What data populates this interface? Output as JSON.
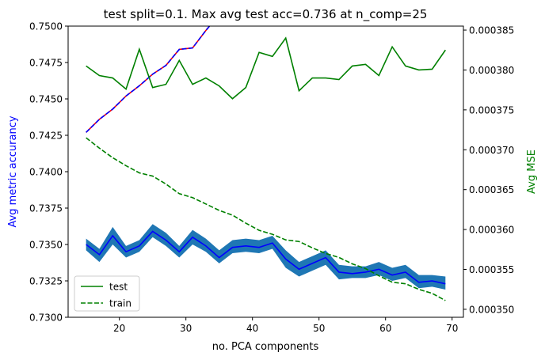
{
  "chart_data": {
    "type": "line",
    "title": "test split=0.1. Max avg test acc=0.736 at n_comp=25",
    "xlabel": "no. PCA components",
    "ylabel_left": "Avg metric accurancy",
    "ylabel_right": "Avg MSE",
    "xlim": [
      12.3,
      71.7
    ],
    "ylim_left": [
      0.73,
      0.75
    ],
    "ylim_right": [
      0.000349,
      0.0003855
    ],
    "x_ticks": [
      20,
      30,
      40,
      50,
      60,
      70
    ],
    "x_tick_labels": [
      "20",
      "30",
      "40",
      "50",
      "60",
      "70"
    ],
    "y_left_ticks": [
      0.73,
      0.7325,
      0.735,
      0.7375,
      0.74,
      0.7425,
      0.745,
      0.7475,
      0.75
    ],
    "y_left_tick_labels": [
      "0.7300",
      "0.7325",
      "0.7350",
      "0.7375",
      "0.7400",
      "0.7425",
      "0.7450",
      "0.7475",
      "0.7500"
    ],
    "y_right_ticks": [
      0.00035,
      0.000355,
      0.00036,
      0.000365,
      0.00037,
      0.000375,
      0.00038,
      0.000385
    ],
    "y_right_tick_labels": [
      "0.000350",
      "0.000355",
      "0.000360",
      "0.000365",
      "0.000370",
      "0.000375",
      "0.000380",
      "0.000385"
    ],
    "x": [
      15,
      17,
      19,
      21,
      23,
      25,
      27,
      29,
      31,
      33,
      35,
      37,
      39,
      41,
      43,
      45,
      47,
      49,
      51,
      53,
      55,
      57,
      59,
      61,
      63,
      65,
      67,
      69
    ],
    "series": [
      {
        "axis": "left",
        "values": [
          0.735,
          0.7343,
          0.7356,
          0.7345,
          0.7349,
          0.7359,
          0.7353,
          0.7345,
          0.7355,
          0.7349,
          0.7341,
          0.7348,
          0.7349,
          0.7348,
          0.7351,
          0.734,
          0.7333,
          0.7337,
          0.7341,
          0.7331,
          0.733,
          0.7331,
          0.7333,
          0.7329,
          0.7331,
          0.7324,
          0.7325,
          0.7323
        ],
        "band_lower": [
          0.7346,
          0.7338,
          0.735,
          0.7341,
          0.7345,
          0.7355,
          0.7349,
          0.7341,
          0.735,
          0.7345,
          0.7337,
          0.7344,
          0.7345,
          0.7344,
          0.7347,
          0.7334,
          0.7328,
          0.7332,
          0.7336,
          0.7326,
          0.7327,
          0.7327,
          0.7329,
          0.7325,
          0.7327,
          0.732,
          0.7321,
          0.7319
        ],
        "band_upper": [
          0.7354,
          0.7347,
          0.7362,
          0.7349,
          0.7353,
          0.7364,
          0.7358,
          0.7349,
          0.736,
          0.7354,
          0.7346,
          0.7353,
          0.7354,
          0.7353,
          0.7356,
          0.7346,
          0.7338,
          0.7342,
          0.7346,
          0.7336,
          0.7335,
          0.7335,
          0.7338,
          0.7334,
          0.7336,
          0.7329,
          0.7329,
          0.7328
        ],
        "color": "#0000ff",
        "band_color": "#1f77b4",
        "style": "solid"
      },
      {
        "axis": "left",
        "values": [
          0.7427,
          0.7436,
          0.7443,
          0.7452,
          0.7459,
          0.7467,
          0.7473,
          0.7484,
          0.7485,
          0.7497,
          0.7508
        ],
        "x": [
          15,
          17,
          19,
          21,
          23,
          25,
          27,
          29,
          31,
          33,
          35
        ],
        "color": "#0000ff",
        "overlay_color": "#ff0000",
        "style": "dashed"
      },
      {
        "name": "test",
        "axis": "right",
        "values": [
          0.0003805,
          0.0003793,
          0.000379,
          0.0003776,
          0.0003826,
          0.0003778,
          0.0003782,
          0.0003812,
          0.0003782,
          0.000379,
          0.000378,
          0.0003764,
          0.0003778,
          0.0003822,
          0.0003817,
          0.000384,
          0.0003774,
          0.000379,
          0.000379,
          0.0003788,
          0.0003805,
          0.0003807,
          0.0003793,
          0.0003829,
          0.0003805,
          0.00038,
          0.0003801,
          0.0003825
        ],
        "color": "#008000",
        "style": "solid"
      },
      {
        "name": "train",
        "axis": "right",
        "values": [
          0.0003715,
          0.0003702,
          0.000369,
          0.000368,
          0.0003671,
          0.0003667,
          0.0003657,
          0.0003645,
          0.000364,
          0.0003632,
          0.0003624,
          0.0003618,
          0.0003608,
          0.0003599,
          0.0003594,
          0.0003587,
          0.0003585,
          0.0003577,
          0.000357,
          0.0003565,
          0.0003557,
          0.0003551,
          0.0003542,
          0.0003534,
          0.0003532,
          0.0003525,
          0.000352,
          0.0003511
        ],
        "color": "#008000",
        "style": "dashed"
      }
    ],
    "legend": {
      "placement": "lower-left",
      "entries": [
        {
          "label": "test",
          "color": "#008000",
          "style": "solid"
        },
        {
          "label": "train",
          "color": "#008000",
          "style": "dashed"
        }
      ]
    },
    "label_colors": {
      "left": "#0000ff",
      "right": "#008000"
    },
    "grid": false
  }
}
